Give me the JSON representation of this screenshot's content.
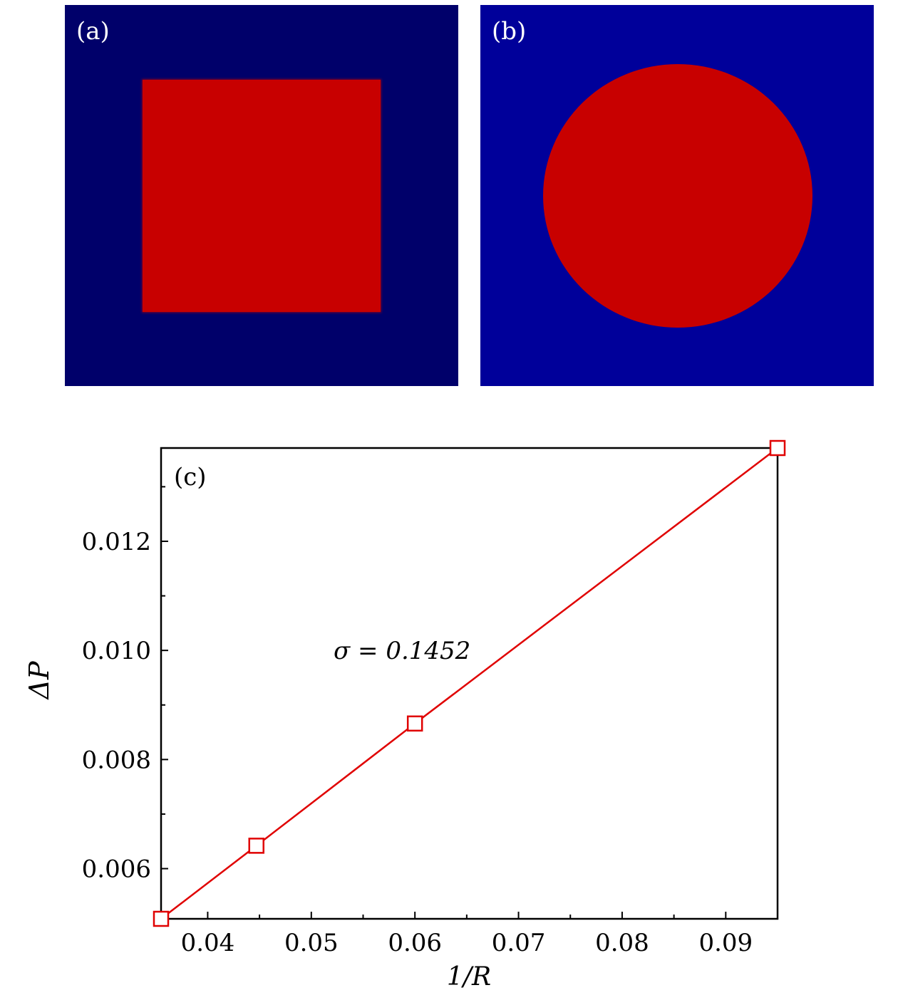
{
  "panel_a": {
    "label": "(a)",
    "colors": {
      "background": "#00006a",
      "region": "#c80000"
    },
    "shape": "square"
  },
  "panel_b": {
    "label": "(b)",
    "colors": {
      "background": "#00009a",
      "region": "#c80000"
    },
    "shape": "circle"
  },
  "chart_data": {
    "type": "line",
    "panel_label": "(c)",
    "xlabel": "1/R",
    "ylabel": "ΔP",
    "annotation": "σ = 0.1452",
    "xlim": [
      0.0355,
      0.095
    ],
    "ylim": [
      0.00508,
      0.01371
    ],
    "x_ticks": [
      0.04,
      0.05,
      0.06,
      0.07,
      0.08,
      0.09
    ],
    "x_tick_labels": [
      "0.04",
      "0.05",
      "0.06",
      "0.07",
      "0.08",
      "0.09"
    ],
    "y_ticks": [
      0.006,
      0.008,
      0.01,
      0.012
    ],
    "y_tick_labels": [
      "0.006",
      "0.008",
      "0.010",
      "0.012"
    ],
    "grid": false,
    "series": [
      {
        "x": [
          0.0355,
          0.0447,
          0.06,
          0.095
        ],
        "y": [
          0.00508,
          0.00642,
          0.00866,
          0.01371
        ],
        "color": "#e00000",
        "marker": "square-open"
      }
    ]
  }
}
